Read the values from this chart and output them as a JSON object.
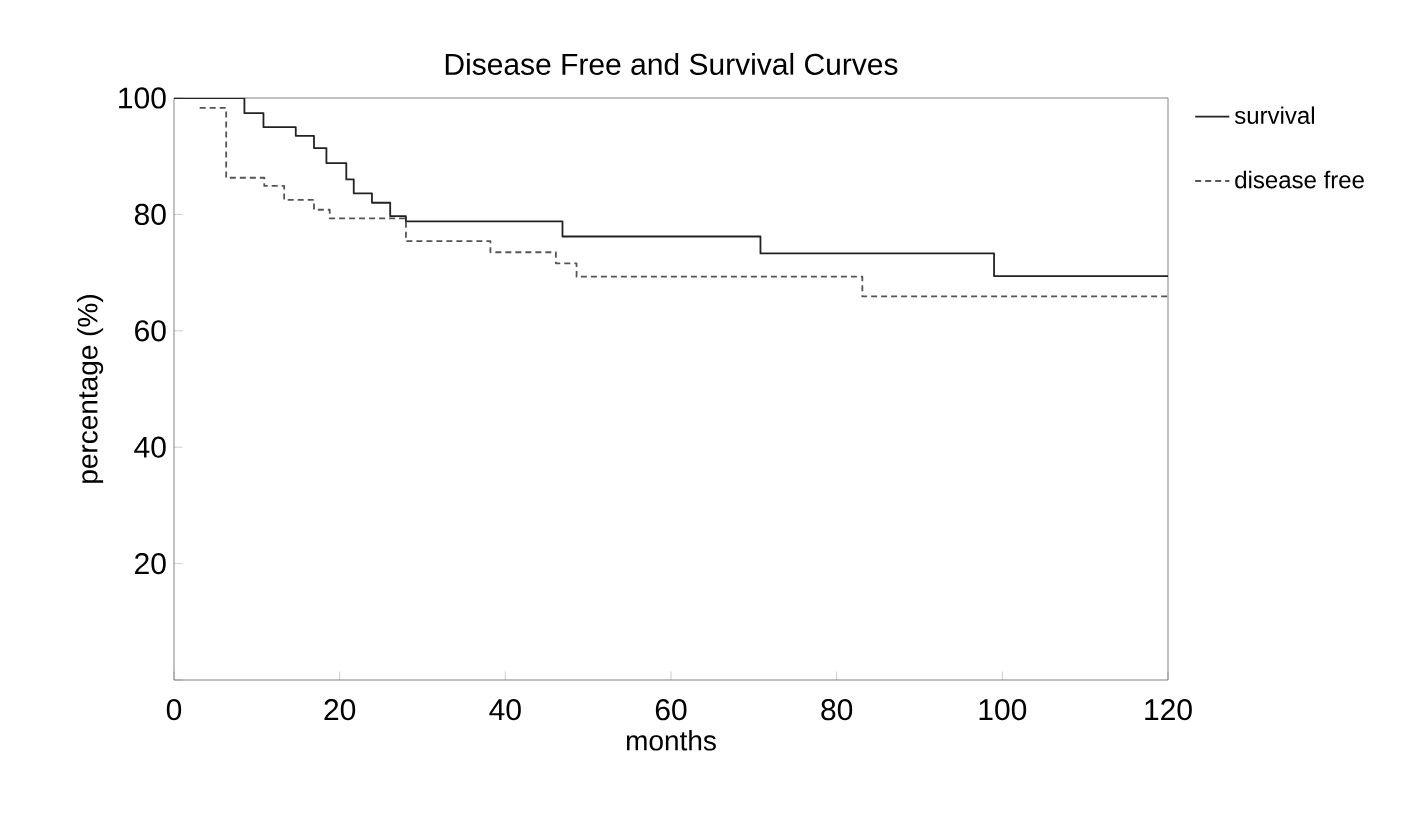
{
  "chart_data": {
    "type": "step",
    "title": "Disease Free and Survival Curves",
    "xlabel": "months",
    "ylabel": "percentage (%)",
    "xlim": [
      0,
      120
    ],
    "ylim": [
      0,
      100
    ],
    "xticks": [
      0,
      20,
      40,
      60,
      80,
      100,
      120
    ],
    "yticks": [
      {
        "value": 0,
        "label": null
      },
      20,
      40,
      60,
      80,
      100
    ],
    "legend": "right",
    "marker": "none",
    "series": [
      {
        "name": "survival",
        "color": "#222222",
        "line_style": "solid",
        "x": [
          0,
          8.5,
          10.8,
          14.7,
          16.9,
          18.4,
          20.8,
          21.7,
          23.9,
          26.1,
          28,
          46.9,
          70.8,
          99,
          120
        ],
        "values": [
          100,
          97.4,
          95,
          93.5,
          91.4,
          88.8,
          86,
          83.6,
          82,
          79.7,
          78.8,
          76.2,
          73.3,
          69.4,
          69.4
        ]
      },
      {
        "name": "disease free",
        "color": "#555555",
        "line_style": "dashed",
        "x": [
          3.1,
          6.3,
          10.9,
          13.3,
          16.9,
          18.8,
          28,
          38.2,
          46.1,
          48.6,
          83.1,
          120
        ],
        "values": [
          98.3,
          86.3,
          84.9,
          82.5,
          80.8,
          79.3,
          75.4,
          73.5,
          71.6,
          69.3,
          65.9,
          65.9
        ]
      }
    ]
  }
}
